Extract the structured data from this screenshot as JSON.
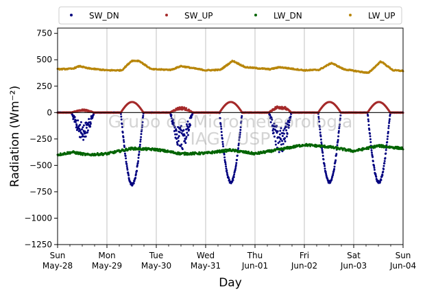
{
  "legend": {
    "placement": "top",
    "entries": [
      {
        "label": "SW_DN",
        "color": "#00007f"
      },
      {
        "label": "SW_UP",
        "color": "#a52a2a"
      },
      {
        "label": "LW_DN",
        "color": "#006400"
      },
      {
        "label": "LW_UP",
        "color": "#b8860b"
      }
    ]
  },
  "watermark": {
    "line1": "Grupo de Micrometeorologia",
    "line2": "IAG / USP"
  },
  "chart_data": {
    "type": "scatter",
    "xlabel": "Day",
    "ylabel": "Radiation (Wm⁻²)",
    "xlim": [
      0,
      7
    ],
    "ylim": [
      -1250,
      800
    ],
    "grid": "vertical",
    "zero_line": true,
    "yticks": [
      "750",
      "500",
      "250",
      "0",
      "−250",
      "−500",
      "−750",
      "−1000",
      "−1250"
    ],
    "ytick_values": [
      750,
      500,
      250,
      0,
      -250,
      -500,
      -750,
      -1000,
      -1250
    ],
    "xticks": [
      {
        "day": "Sun",
        "date": "May-28"
      },
      {
        "day": "Mon",
        "date": "May-29"
      },
      {
        "day": "Tue",
        "date": "May-30"
      },
      {
        "day": "Wed",
        "date": "May-31"
      },
      {
        "day": "Thu",
        "date": "Jun-01"
      },
      {
        "day": "Fri",
        "date": "Jun-02"
      },
      {
        "day": "Sat",
        "date": "Jun-03"
      },
      {
        "day": "Sun",
        "date": "Jun-04"
      }
    ],
    "series": [
      {
        "name": "SW_DN",
        "color": "#00007f",
        "daily_min": [
          -260,
          -680,
          -360,
          -660,
          -390,
          -660,
          -660
        ],
        "noisy_days": [
          0,
          2,
          4
        ]
      },
      {
        "name": "SW_UP",
        "color": "#a52a2a",
        "daily_max": [
          30,
          100,
          55,
          100,
          70,
          100,
          100
        ],
        "noisy_days": [
          0,
          2,
          4
        ]
      },
      {
        "name": "LW_DN",
        "color": "#006400",
        "x": [
          0,
          0.3,
          0.6,
          1.0,
          1.5,
          2.0,
          2.5,
          3.0,
          3.5,
          4.0,
          4.5,
          5.0,
          5.5,
          6.0,
          6.5,
          7.0
        ],
        "y": [
          -400,
          -375,
          -400,
          -390,
          -340,
          -350,
          -390,
          -385,
          -355,
          -390,
          -350,
          -305,
          -325,
          -365,
          -315,
          -340
        ]
      },
      {
        "name": "LW_UP",
        "color": "#b8860b",
        "x": [
          0,
          0.3,
          0.45,
          0.6,
          1.0,
          1.3,
          1.5,
          1.65,
          1.9,
          2.3,
          2.5,
          3.0,
          3.3,
          3.55,
          3.8,
          4.3,
          4.5,
          5.0,
          5.3,
          5.55,
          5.8,
          6.3,
          6.55,
          6.8,
          7.0
        ],
        "y": [
          410,
          415,
          440,
          420,
          400,
          400,
          490,
          490,
          410,
          405,
          440,
          400,
          405,
          490,
          430,
          410,
          430,
          400,
          405,
          470,
          410,
          375,
          485,
          400,
          395
        ]
      }
    ]
  }
}
